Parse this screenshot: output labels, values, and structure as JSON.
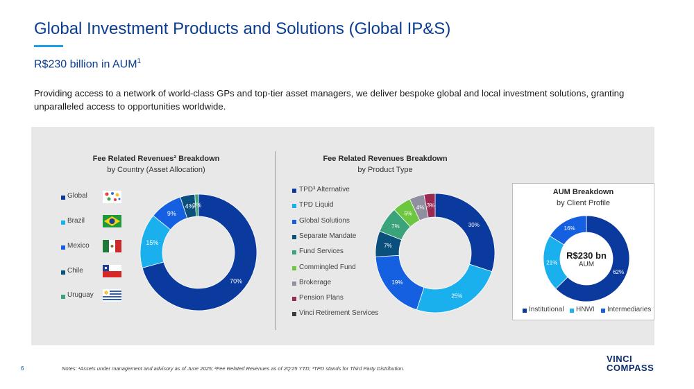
{
  "page": {
    "title": "Global Investment Products and Solutions (Global IP&S)",
    "subtitle": "R$230 billion in AUM",
    "subtitle_sup": "1",
    "description": "Providing access to a network of world-class GPs and top-tier asset managers, we deliver bespoke global and local investment solutions, granting unparalleled access to opportunities worldwide.",
    "page_number": "6",
    "notes": "Notes: ¹Assets under management and advisory as of June 2025; ²Fee Related Revenues as of 2Q'25 YTD; ³TPD stands for Third Party Distribution.",
    "logo_line1": "VINCI",
    "logo_line2": "COMPASS",
    "accent_color": "#1aa0e6",
    "title_color": "#0a3d91"
  },
  "country_chart": {
    "title": "Fee Related Revenues² Breakdown",
    "subtitle": "by Country (Asset Allocation)",
    "flags": [
      "global-icon",
      "brazil-flag-icon",
      "mexico-flag-icon",
      "chile-flag-icon",
      "uruguay-flag-icon"
    ]
  },
  "product_chart": {
    "title": "Fee Related Revenues Breakdown",
    "subtitle": "by Product Type"
  },
  "aum_chart": {
    "title": "AUM Breakdown",
    "subtitle": "by Client Profile",
    "center_value": "R$230 bn",
    "center_label": "AUM"
  },
  "chart_data": [
    {
      "type": "pie",
      "title": "Fee Related Revenues² Breakdown",
      "subtitle": "by Country (Asset Allocation)",
      "legend_position": "left",
      "categories": [
        "Global",
        "Brazil",
        "Mexico",
        "Chile",
        "Uruguay"
      ],
      "values": [
        70,
        15,
        9,
        4,
        1
      ],
      "labels": [
        "70%",
        "15%",
        "9%",
        "4%",
        "1%"
      ],
      "colors": [
        "#0a3a9e",
        "#1ab0ee",
        "#1560e0",
        "#0b4f7c",
        "#3aa37a"
      ]
    },
    {
      "type": "pie",
      "title": "Fee Related Revenues Breakdown",
      "subtitle": "by Product Type",
      "legend_position": "left",
      "categories": [
        "TPD³ Alternative",
        "TPD Liquid",
        "Global Solutions",
        "Separate Mandate",
        "Fund Services",
        "Commingled Fund",
        "Brokerage",
        "Pension Plans",
        "Vinci Retirement Services"
      ],
      "values": [
        30,
        25,
        19,
        7,
        7,
        5,
        4,
        3,
        0
      ],
      "labels": [
        "30%",
        "25%",
        "19%",
        "7%",
        "7%",
        "5%",
        "4%",
        "3%",
        ""
      ],
      "colors": [
        "#0a3a9e",
        "#1ab0ee",
        "#1560e0",
        "#0b4f7c",
        "#3aa37a",
        "#6cc63f",
        "#8f8f9f",
        "#9b2a52",
        "#3d3d3d"
      ]
    },
    {
      "type": "pie",
      "title": "AUM Breakdown",
      "subtitle": "by Client Profile",
      "legend_position": "bottom",
      "categories": [
        "Institutional",
        "HNWI",
        "Intermediaries"
      ],
      "values": [
        62,
        21,
        16
      ],
      "labels": [
        "62%",
        "21%",
        "16%"
      ],
      "colors": [
        "#0a3a9e",
        "#1ab0ee",
        "#1560e0"
      ]
    }
  ]
}
